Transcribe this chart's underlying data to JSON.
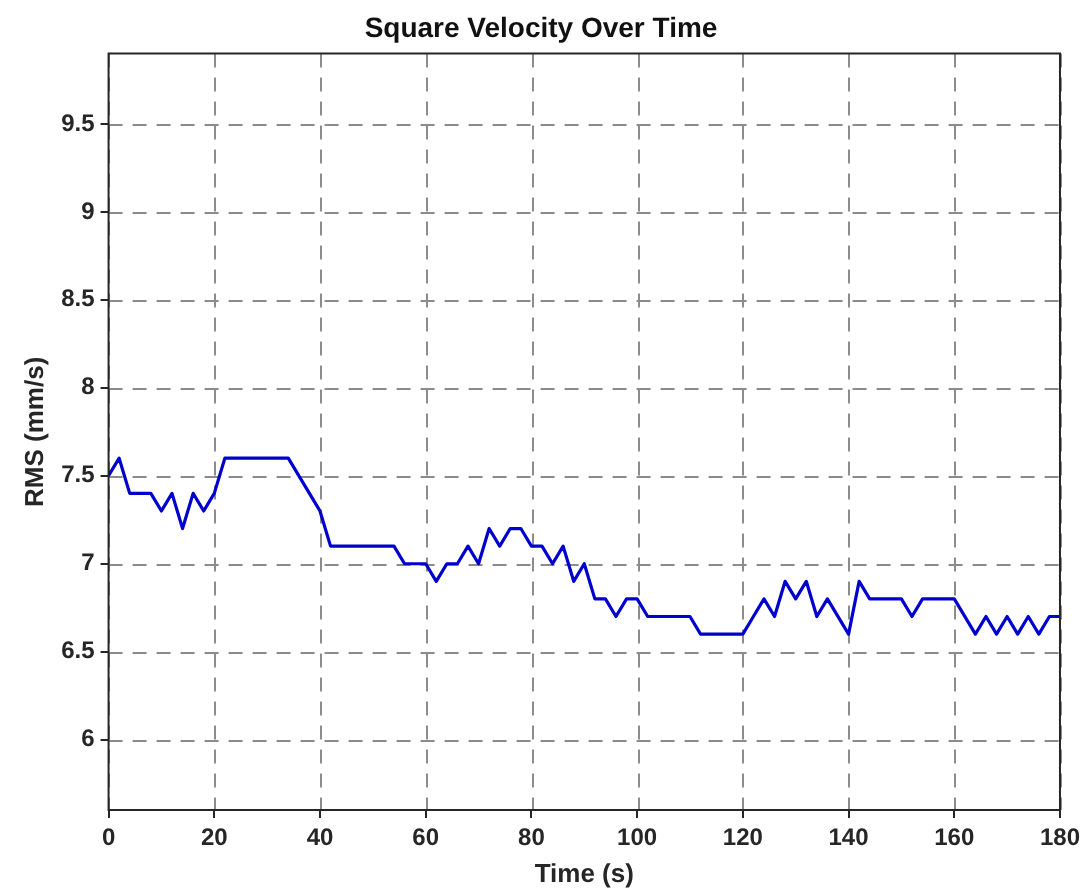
{
  "chart_data": {
    "type": "line",
    "title": "Square Velocity Over Time",
    "xlabel": "Time (s)",
    "ylabel": "RMS (mm/s)",
    "x": [
      0,
      2,
      4,
      8,
      10,
      12,
      14,
      16,
      18,
      20,
      22,
      34,
      38,
      40,
      42,
      54,
      56,
      60,
      62,
      64,
      66,
      68,
      70,
      72,
      74,
      76,
      78,
      80,
      82,
      84,
      86,
      88,
      90,
      92,
      94,
      96,
      98,
      100,
      102,
      110,
      112,
      120,
      122,
      124,
      126,
      128,
      130,
      132,
      134,
      136,
      140,
      142,
      144,
      150,
      152,
      154,
      160,
      164,
      166,
      168,
      170,
      172,
      174,
      176,
      178,
      180
    ],
    "series": [
      {
        "color": "#0000cc",
        "values": [
          7.5,
          7.6,
          7.4,
          7.4,
          7.3,
          7.4,
          7.2,
          7.4,
          7.3,
          7.4,
          7.6,
          7.6,
          7.4,
          7.3,
          7.1,
          7.1,
          7.0,
          7.0,
          6.9,
          7.0,
          7.0,
          7.1,
          7.0,
          7.2,
          7.1,
          7.2,
          7.2,
          7.1,
          7.1,
          7.0,
          7.1,
          6.9,
          7.0,
          6.8,
          6.8,
          6.7,
          6.8,
          6.8,
          6.7,
          6.7,
          6.6,
          6.6,
          6.7,
          6.8,
          6.7,
          6.9,
          6.8,
          6.9,
          6.7,
          6.8,
          6.6,
          6.9,
          6.8,
          6.8,
          6.7,
          6.8,
          6.8,
          6.6,
          6.7,
          6.6,
          6.7,
          6.6,
          6.7,
          6.6,
          6.7,
          6.7
        ]
      }
    ],
    "xlim": [
      0,
      180
    ],
    "xticks": [
      0,
      20,
      40,
      60,
      80,
      100,
      120,
      140,
      160,
      180
    ],
    "ylim": [
      5.6,
      9.9
    ],
    "yticks": [
      6,
      6.5,
      7,
      7.5,
      8,
      8.5,
      9,
      9.5
    ],
    "grid": true,
    "legend": false,
    "marker": "none",
    "line_style": "solid"
  }
}
